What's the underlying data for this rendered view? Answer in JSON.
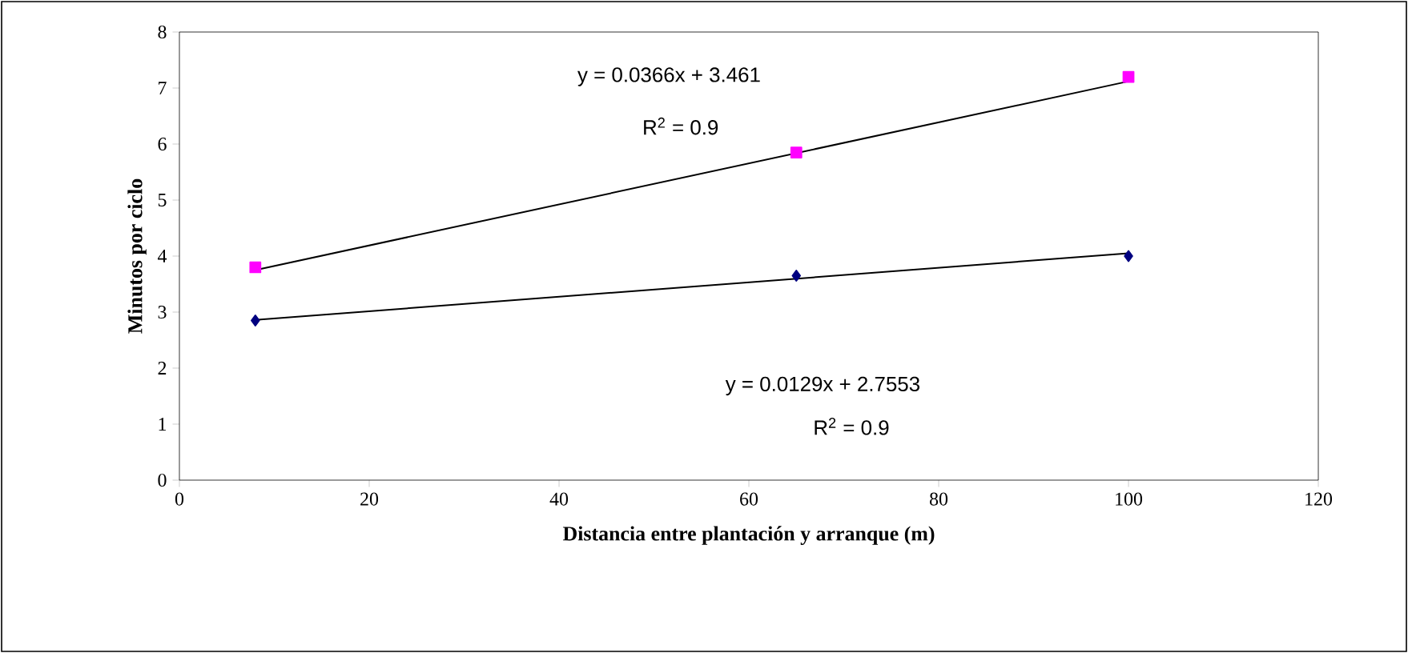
{
  "chart_data": {
    "type": "scatter",
    "xlabel": "Distancia entre plantación y arranque (m)",
    "ylabel": "Minutos por ciclo",
    "xlim": [
      0,
      120
    ],
    "ylim": [
      0,
      8
    ],
    "xticks": [
      0,
      20,
      40,
      60,
      80,
      100,
      120
    ],
    "yticks": [
      0,
      1,
      2,
      3,
      4,
      5,
      6,
      7,
      8
    ],
    "series": [
      {
        "marker": "square",
        "color": "#ff00ff",
        "x": [
          8,
          65,
          100
        ],
        "values": [
          3.8,
          5.85,
          7.2
        ]
      },
      {
        "marker": "diamond",
        "color": "#000080",
        "x": [
          8,
          65,
          100
        ],
        "values": [
          2.85,
          3.65,
          4.0
        ]
      },
      {
        "type": "line",
        "marker": "none",
        "color": "#000000",
        "x": [
          8,
          100
        ],
        "values": [
          3.75,
          7.12
        ]
      },
      {
        "type": "line",
        "marker": "none",
        "color": "#000000",
        "x": [
          8,
          100
        ],
        "values": [
          2.86,
          4.05
        ]
      }
    ],
    "annotations": [
      "y = 0.0366x + 3.461",
      "R$^{2}$ = 0.9",
      "y = 0.0129x + 2.7553",
      "R$^{2}$ = 0.9"
    ]
  }
}
